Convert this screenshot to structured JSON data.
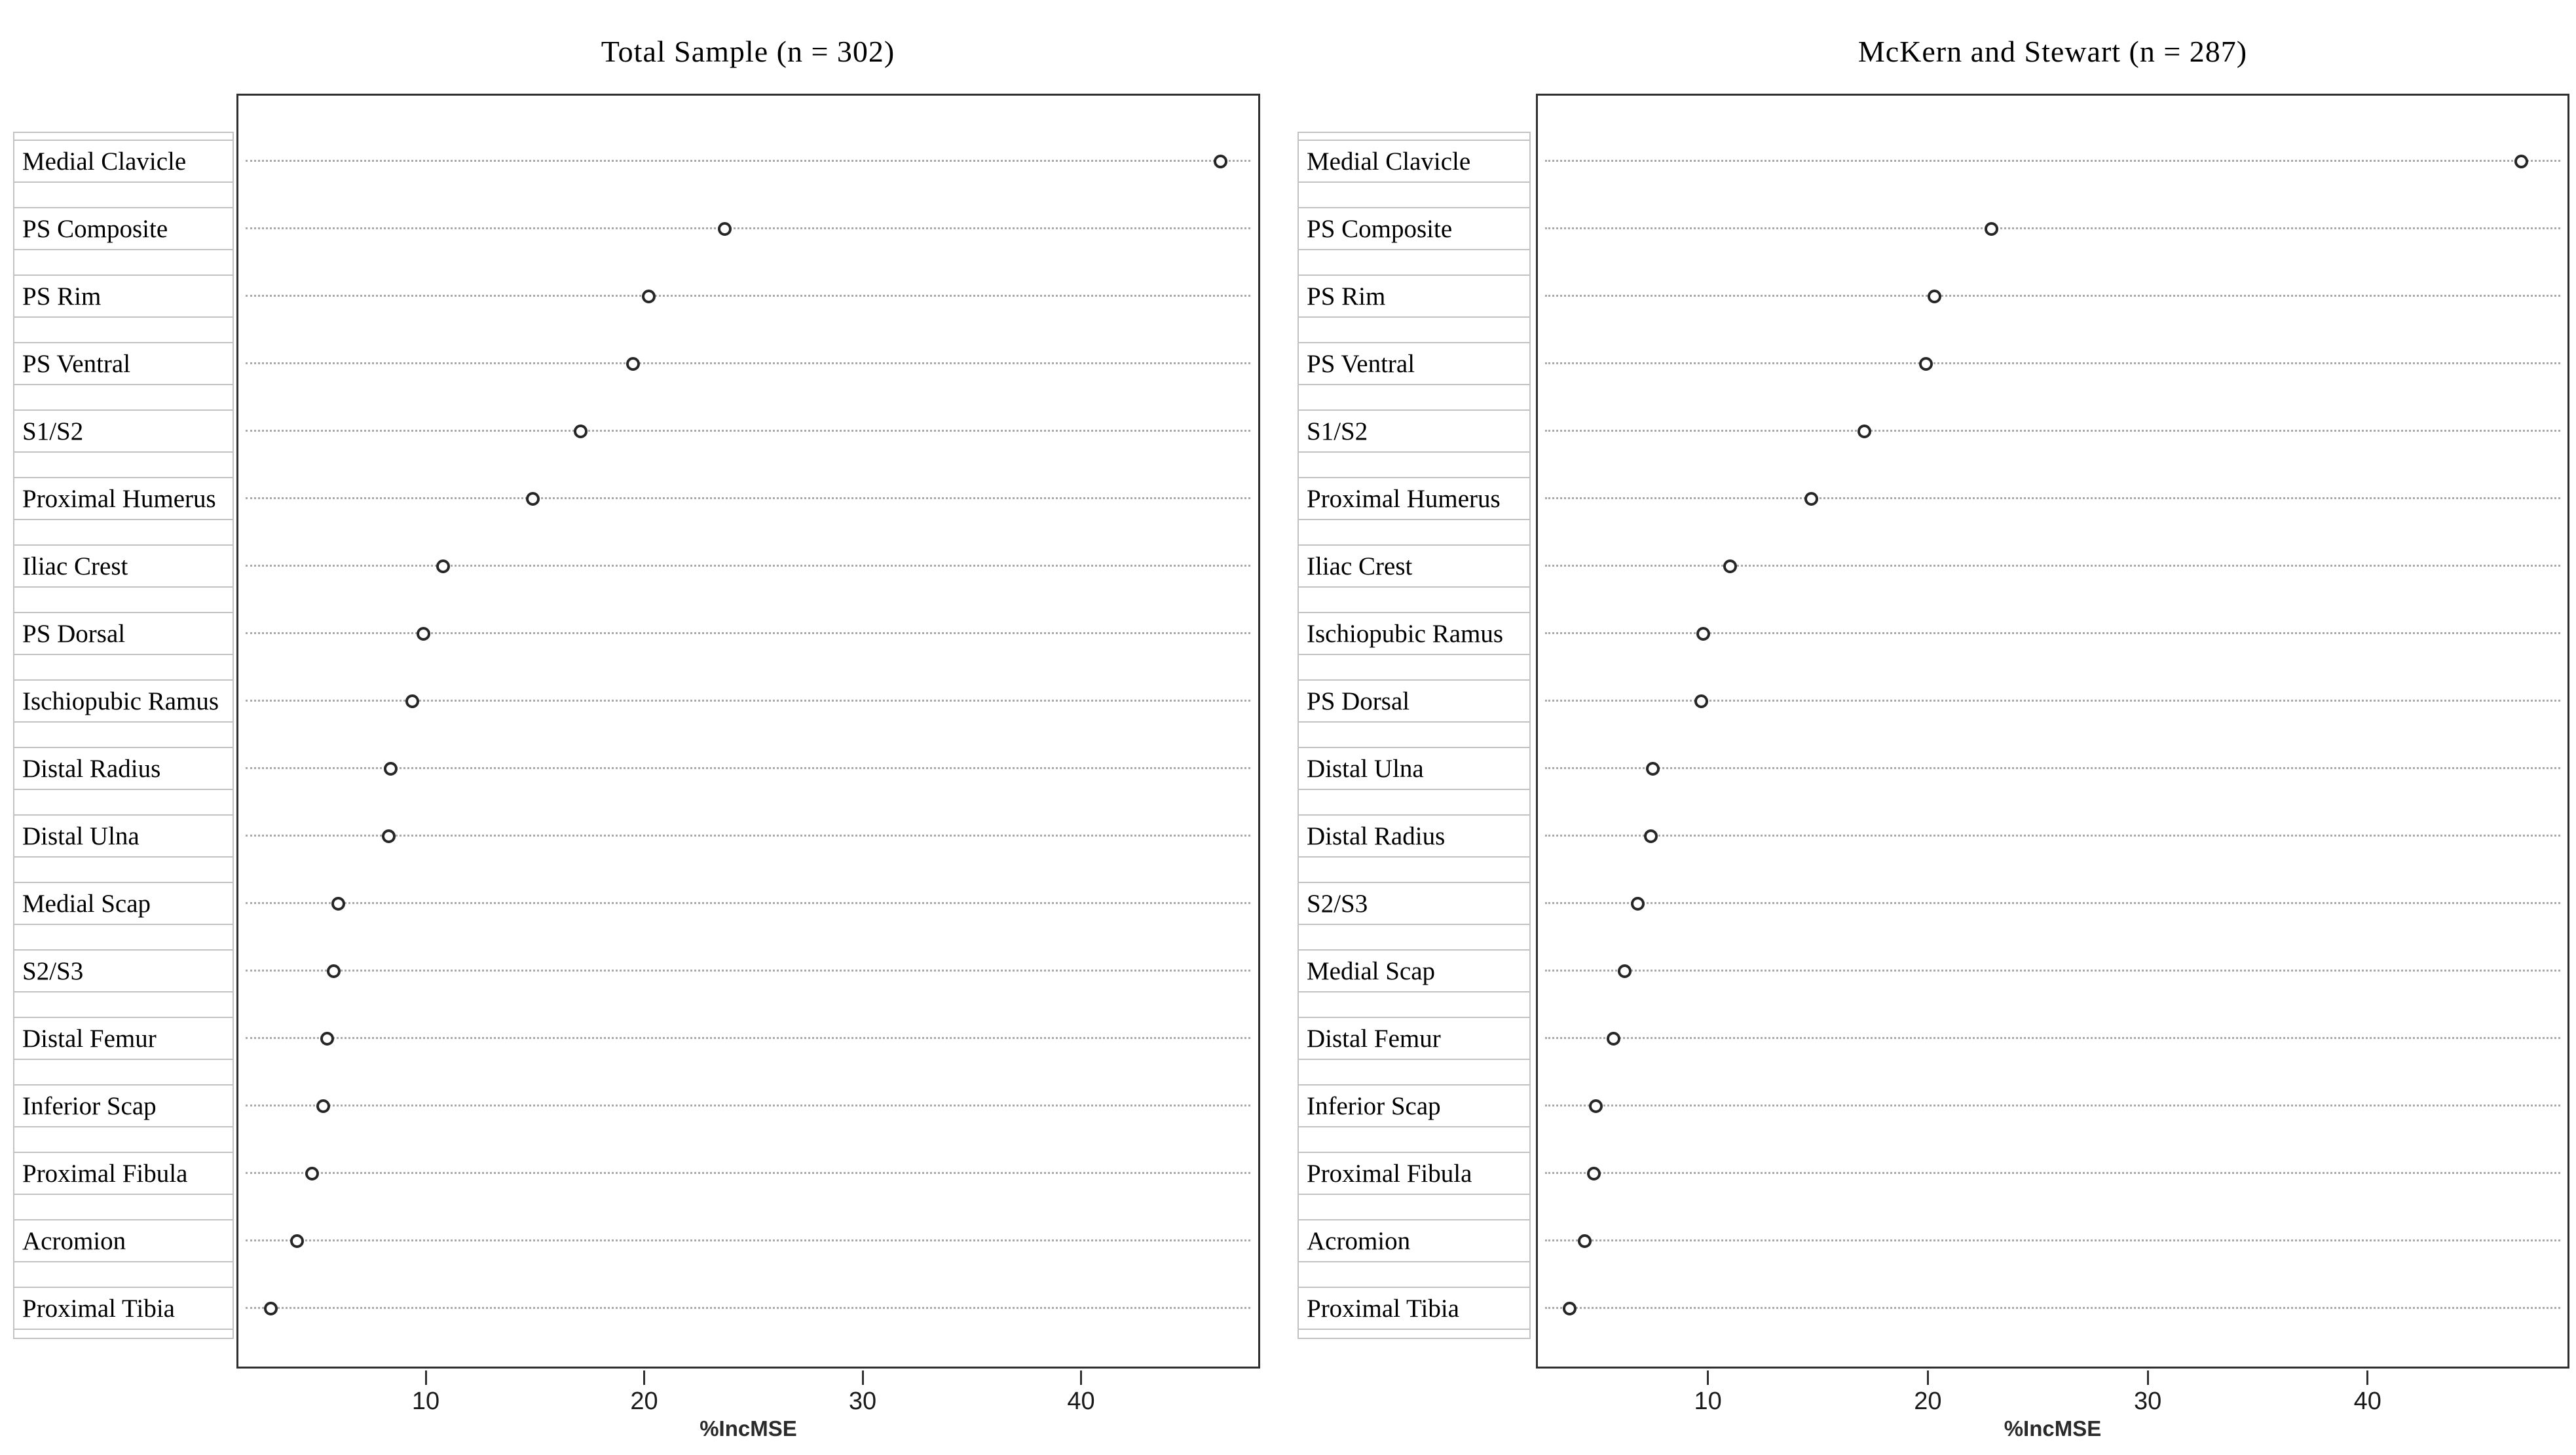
{
  "chart_data": [
    {
      "type": "scatter",
      "subtype": "dot-plot",
      "title": "Total Sample (n = 302)",
      "xlabel": "%IncMSE",
      "x_ticks": [
        10,
        20,
        30,
        40
      ],
      "xlim": [
        1.3,
        48.2
      ],
      "grid": "horizontal-dotted",
      "marker": "open-circle",
      "legend_position": "none",
      "categories": [
        "Medial Clavicle",
        "PS Composite",
        "PS Rim",
        "PS Ventral",
        "S1/S2",
        "Proximal Humerus",
        "Iliac Crest",
        "PS Dorsal",
        "Ischiopubic Ramus",
        "Distal Radius",
        "Distal Ulna",
        "Medial Scap",
        "S2/S3",
        "Distal Femur",
        "Inferior Scap",
        "Proximal Fibula",
        "Acromion",
        "Proximal Tibia"
      ],
      "values": [
        46.4,
        23.7,
        20.2,
        19.5,
        17.1,
        14.9,
        10.8,
        9.9,
        9.4,
        8.4,
        8.3,
        6.0,
        5.8,
        5.5,
        5.3,
        4.8,
        4.1,
        2.9
      ]
    },
    {
      "type": "scatter",
      "subtype": "dot-plot",
      "title": "McKern and Stewart (n = 287)",
      "xlabel": "%IncMSE",
      "x_ticks": [
        10,
        20,
        30,
        40
      ],
      "xlim": [
        2.1,
        49.2
      ],
      "grid": "horizontal-dotted",
      "marker": "open-circle",
      "legend_position": "none",
      "categories": [
        "Medial Clavicle",
        "PS Composite",
        "PS Rim",
        "PS Ventral",
        "S1/S2",
        "Proximal Humerus",
        "Iliac Crest",
        "Ischiopubic Ramus",
        "PS Dorsal",
        "Distal Ulna",
        "Distal Radius",
        "S2/S3",
        "Medial Scap",
        "Distal Femur",
        "Inferior Scap",
        "Proximal Fibula",
        "Acromion",
        "Proximal Tibia"
      ],
      "values": [
        47.0,
        22.9,
        20.3,
        19.9,
        17.1,
        14.7,
        11.0,
        9.8,
        9.7,
        7.5,
        7.4,
        6.8,
        6.2,
        5.7,
        4.9,
        4.8,
        4.4,
        3.7
      ]
    }
  ],
  "figure": {
    "colors": {
      "plot_border": "#2f2f2f",
      "cell_border": "#c2c2c2",
      "gridline": "#a8a8a8",
      "dot_stroke": "#262626",
      "text": "#000000",
      "tick_text": "#1a1a1a"
    }
  }
}
